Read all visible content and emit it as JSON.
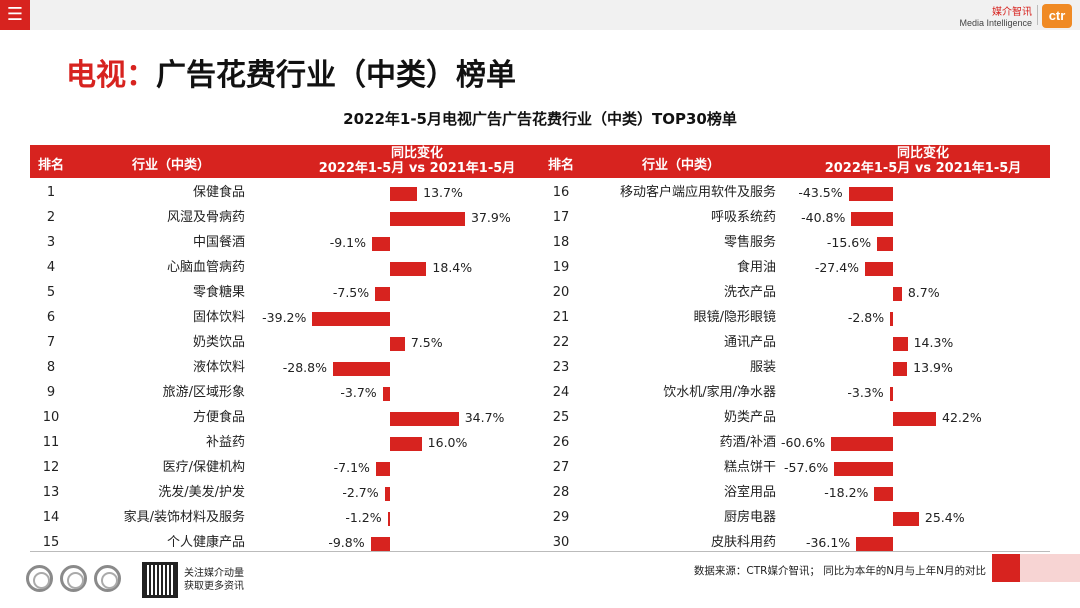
{
  "header": {
    "menu_icon": "menu-icon",
    "brand_cn": "媒介智讯",
    "brand_en": "Media Intelligence",
    "logo_text": "ctr"
  },
  "page_title": {
    "highlight": "电视：",
    "rest": "广告花费行业（中类）榜单"
  },
  "chart_title": "2022年1-5月电视广告广告花费行业（中类）TOP30榜单",
  "table_header": {
    "rank": "排名",
    "industry": "行业（中类）",
    "yoy_line1": "同比变化",
    "yoy_line2": "2022年1-5月 vs 2021年1-5月"
  },
  "footer": {
    "source": "数据来源：CTR媒介智讯；  同比为本年的N月与上年N月的对比",
    "follow_line1": "关注媒介动量",
    "follow_line2": "获取更多资讯"
  },
  "colors": {
    "accent": "#d7231f",
    "brand_orange": "#f08a24"
  },
  "chart_data": {
    "type": "bar",
    "orientation": "horizontal",
    "unit": "%",
    "series": [
      {
        "ranks": [
          1,
          2,
          3,
          4,
          5,
          6,
          7,
          8,
          9,
          10,
          11,
          12,
          13,
          14,
          15
        ],
        "categories": [
          "保健食品",
          "风湿及骨病药",
          "中国餐酒",
          "心脑血管病药",
          "零食糖果",
          "固体饮料",
          "奶类饮品",
          "液体饮料",
          "旅游/区域形象",
          "方便食品",
          "补益药",
          "医疗/保健机构",
          "洗发/美发/护发",
          "家具/装饰材料及服务",
          "个人健康产品"
        ],
        "values": [
          13.7,
          37.9,
          -9.1,
          18.4,
          -7.5,
          -39.2,
          7.5,
          -28.8,
          -3.7,
          34.7,
          16.0,
          -7.1,
          -2.7,
          -1.2,
          -9.8
        ],
        "labels": [
          "13.7%",
          "37.9%",
          "-9.1%",
          "18.4%",
          "-7.5%",
          "-39.2%",
          "7.5%",
          "-28.8%",
          "-3.7%",
          "34.7%",
          "16.0%",
          "-7.1%",
          "-2.7%",
          "-1.2%",
          "-9.8%"
        ]
      },
      {
        "ranks": [
          16,
          17,
          18,
          19,
          20,
          21,
          22,
          23,
          24,
          25,
          26,
          27,
          28,
          29,
          30
        ],
        "categories": [
          "移动客户端应用软件及服务",
          "呼吸系统药",
          "零售服务",
          "食用油",
          "洗衣产品",
          "眼镜/隐形眼镜",
          "通讯产品",
          "服装",
          "饮水机/家用/净水器",
          "奶类产品",
          "药酒/补酒",
          "糕点饼干",
          "浴室用品",
          "厨房电器",
          "皮肤科用药"
        ],
        "values": [
          -43.5,
          -40.8,
          -15.6,
          -27.4,
          8.7,
          -2.8,
          14.3,
          13.9,
          -3.3,
          42.2,
          -60.6,
          -57.6,
          -18.2,
          25.4,
          -36.1
        ],
        "labels": [
          "-43.5%",
          "-40.8%",
          "-15.6%",
          "-27.4%",
          "8.7%",
          "-2.8%",
          "14.3%",
          "13.9%",
          "-3.3%",
          "42.2%",
          "-60.6%",
          "-57.6%",
          "-18.2%",
          "25.4%",
          "-36.1%"
        ]
      }
    ]
  }
}
